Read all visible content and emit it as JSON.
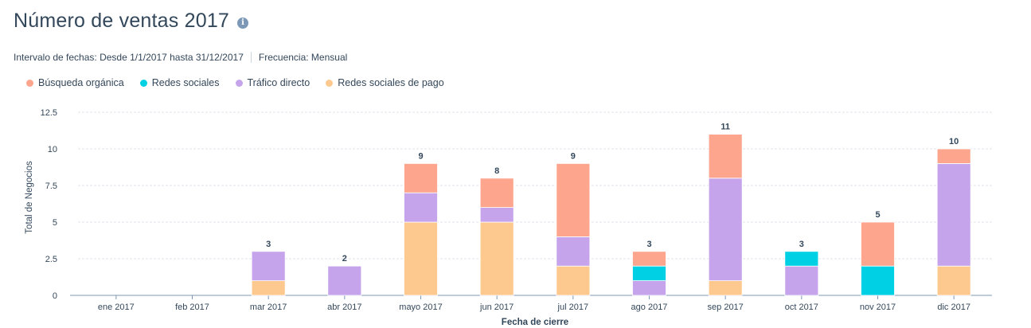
{
  "header": {
    "title": "Número de ventas 2017",
    "info_icon": "info-circle-icon",
    "date_range": "Intervalo de fechas: Desde 1/1/2017 hasta 31/12/2017",
    "frequency": "Frecuencia: Mensual"
  },
  "colors": {
    "organic": "#fea58e",
    "social": "#00d0e4",
    "direct": "#c5a4ec",
    "paid_social": "#fec98f",
    "grid": "#dfe3eb",
    "axis": "#33475b"
  },
  "chart_data": {
    "type": "bar",
    "stacked": true,
    "xlabel": "Fecha de cierre",
    "ylabel": "Total de Negocios",
    "ylim": [
      0,
      12.5
    ],
    "yticks": [
      "0",
      "2.5",
      "5",
      "7.5",
      "10",
      "12.5"
    ],
    "ytick_values": [
      0,
      2.5,
      5,
      7.5,
      10,
      12.5
    ],
    "grid": true,
    "legend_position": "top-left",
    "categories": [
      "ene 2017",
      "feb 2017",
      "mar 2017",
      "abr 2017",
      "mayo 2017",
      "jun 2017",
      "jul 2017",
      "ago 2017",
      "sep 2017",
      "oct 2017",
      "nov 2017",
      "dic 2017"
    ],
    "series": [
      {
        "name": "Redes sociales de pago",
        "color": "#fec98f",
        "values": [
          0,
          0,
          1,
          0,
          5,
          5,
          2,
          0,
          1,
          0,
          0,
          2
        ]
      },
      {
        "name": "Tráfico directo",
        "color": "#c5a4ec",
        "values": [
          0,
          0,
          2,
          2,
          2,
          1,
          2,
          1,
          7,
          2,
          0,
          7
        ]
      },
      {
        "name": "Redes sociales",
        "color": "#00d0e4",
        "values": [
          0,
          0,
          0,
          0,
          0,
          0,
          0,
          1,
          0,
          1,
          2,
          0
        ]
      },
      {
        "name": "Búsqueda orgánica",
        "color": "#fea58e",
        "values": [
          0,
          0,
          0,
          0,
          2,
          2,
          5,
          1,
          3,
          0,
          3,
          1
        ]
      }
    ],
    "totals": [
      "",
      "",
      "3",
      "2",
      "9",
      "8",
      "9",
      "3",
      "11",
      "3",
      "5",
      "10"
    ],
    "legend": [
      {
        "label": "Búsqueda orgánica",
        "color": "#fea58e"
      },
      {
        "label": "Redes sociales",
        "color": "#00d0e4"
      },
      {
        "label": "Tráfico directo",
        "color": "#c5a4ec"
      },
      {
        "label": "Redes sociales de pago",
        "color": "#fec98f"
      }
    ]
  }
}
